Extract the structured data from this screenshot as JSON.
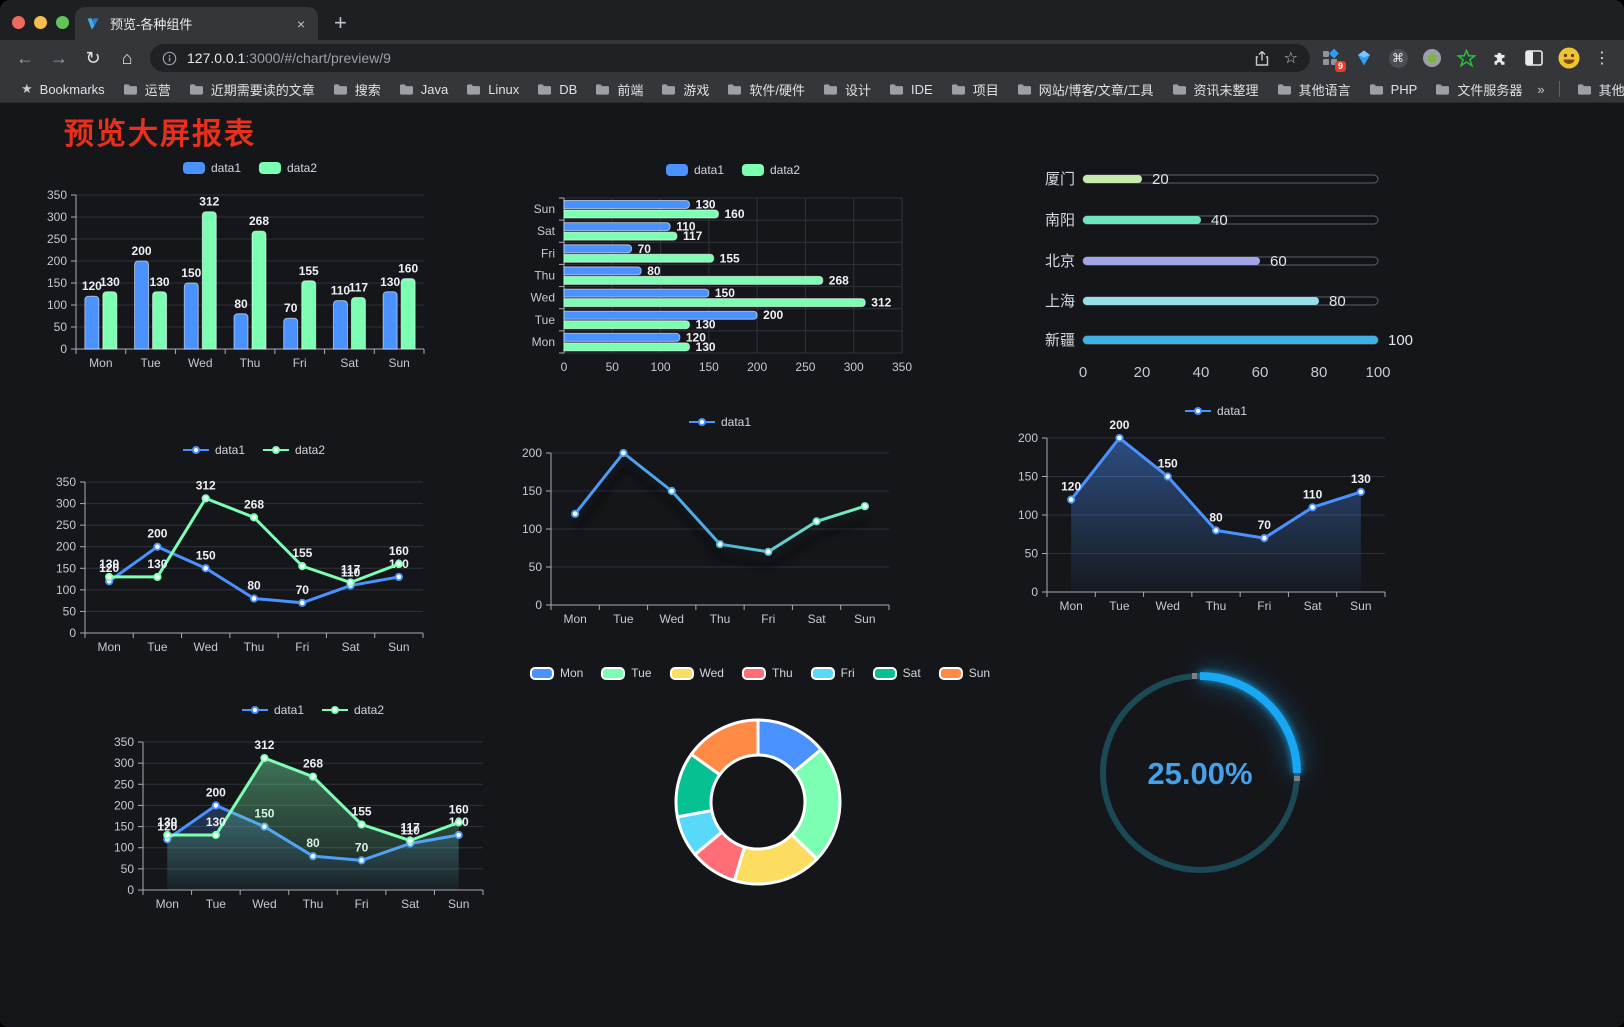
{
  "browser": {
    "tab": {
      "title": "预览-各种组件",
      "close_glyph": "×",
      "new_tab_glyph": "+"
    },
    "address": {
      "host": "127.0.0.1",
      "path": ":3000/#/chart/preview/9"
    },
    "extension_badge": "9",
    "icons": {
      "back": "←",
      "forward": "→",
      "reload": "↻",
      "home": "⌂",
      "bookmark_star": "☆",
      "command": "⌘",
      "menu": "⋮",
      "bookmarks_star": "★",
      "overflow": "»"
    },
    "bookmarks_bar": {
      "label": "Bookmarks",
      "folders": [
        "运营",
        "近期需要读的文章",
        "搜索",
        "Java",
        "Linux",
        "DB",
        "前端",
        "游戏",
        "软件/硬件",
        "设计",
        "IDE",
        "项目",
        "网站/博客/文章/工具",
        "资讯未整理",
        "其他语言",
        "PHP",
        "文件服务器"
      ],
      "other_bookmarks": "其他书签"
    }
  },
  "page": {
    "title": "预览大屏报表",
    "title_color": "#e8301c",
    "background": "#15161a"
  },
  "chart_data": [
    {
      "id": "bar-grouped",
      "type": "bar",
      "orientation": "vertical",
      "categories": [
        "Mon",
        "Tue",
        "Wed",
        "Thu",
        "Fri",
        "Sat",
        "Sun"
      ],
      "series": [
        {
          "name": "data1",
          "color": "#4992ff",
          "values": [
            120,
            200,
            150,
            80,
            70,
            110,
            130
          ]
        },
        {
          "name": "data2",
          "color": "#7cffb2",
          "values": [
            130,
            130,
            312,
            268,
            155,
            117,
            160
          ]
        }
      ],
      "ylim": [
        0,
        350
      ],
      "yticks": [
        0,
        50,
        100,
        150,
        200,
        250,
        300,
        350
      ],
      "legend": [
        "data1",
        "data2"
      ],
      "value_labels": true,
      "grid": true
    },
    {
      "id": "bar-horizontal",
      "type": "bar",
      "orientation": "horizontal",
      "categories_top_to_bottom": [
        "Sun",
        "Sat",
        "Fri",
        "Thu",
        "Wed",
        "Tue",
        "Mon"
      ],
      "series": [
        {
          "name": "data1",
          "color": "#4992ff",
          "values_top_to_bottom": [
            130,
            110,
            70,
            80,
            150,
            200,
            120
          ]
        },
        {
          "name": "data2",
          "color": "#7cffb2",
          "values_top_to_bottom": [
            160,
            117,
            155,
            268,
            312,
            130,
            130
          ]
        }
      ],
      "xlim": [
        0,
        350
      ],
      "xticks": [
        0,
        50,
        100,
        150,
        200,
        250,
        300,
        350
      ],
      "legend": [
        "data1",
        "data2"
      ],
      "value_labels": true,
      "grid": true
    },
    {
      "id": "progress-bars",
      "type": "bar",
      "style": "progress",
      "items": [
        {
          "label": "厦门",
          "value": 20,
          "color": "#c4ebad"
        },
        {
          "label": "南阳",
          "value": 40,
          "color": "#6be6c1"
        },
        {
          "label": "北京",
          "value": 60,
          "color": "#a0a7e6"
        },
        {
          "label": "上海",
          "value": 80,
          "color": "#96dee8"
        },
        {
          "label": "新疆",
          "value": 100,
          "color": "#3fb1e3"
        }
      ],
      "xlim": [
        0,
        100
      ],
      "xticks": [
        0,
        20,
        40,
        60,
        80,
        100
      ],
      "value_labels": true
    },
    {
      "id": "line-two-series",
      "type": "line",
      "categories": [
        "Mon",
        "Tue",
        "Wed",
        "Thu",
        "Fri",
        "Sat",
        "Sun"
      ],
      "series": [
        {
          "name": "data1",
          "color": "#4992ff",
          "values": [
            120,
            200,
            150,
            80,
            70,
            110,
            130
          ]
        },
        {
          "name": "data2",
          "color": "#7cffb2",
          "values": [
            130,
            130,
            312,
            268,
            155,
            117,
            160
          ]
        }
      ],
      "ylim": [
        0,
        350
      ],
      "yticks": [
        0,
        50,
        100,
        150,
        200,
        250,
        300,
        350
      ],
      "legend": [
        "data1",
        "data2"
      ],
      "value_labels": true,
      "grid": true
    },
    {
      "id": "line-gradient",
      "type": "line",
      "categories": [
        "Mon",
        "Tue",
        "Wed",
        "Thu",
        "Fri",
        "Sat",
        "Sun"
      ],
      "series": [
        {
          "name": "data1",
          "color": "#4992ff",
          "gradient": [
            "#4992ff",
            "#52b0e0",
            "#7cffb2"
          ],
          "values": [
            120,
            200,
            150,
            80,
            70,
            110,
            130
          ],
          "shadow": true
        }
      ],
      "ylim": [
        0,
        200
      ],
      "yticks": [
        0,
        50,
        100,
        150,
        200
      ],
      "legend": [
        "data1"
      ],
      "value_labels": false,
      "grid": true
    },
    {
      "id": "line-area",
      "type": "area",
      "categories": [
        "Mon",
        "Tue",
        "Wed",
        "Thu",
        "Fri",
        "Sat",
        "Sun"
      ],
      "series": [
        {
          "name": "data1",
          "color": "#4992ff",
          "area": true,
          "values": [
            120,
            200,
            150,
            80,
            70,
            110,
            130
          ]
        }
      ],
      "ylim": [
        0,
        200
      ],
      "yticks": [
        0,
        50,
        100,
        150,
        200
      ],
      "legend": [
        "data1"
      ],
      "value_labels": true,
      "grid": true
    },
    {
      "id": "line-two-area",
      "type": "area",
      "categories": [
        "Mon",
        "Tue",
        "Wed",
        "Thu",
        "Fri",
        "Sat",
        "Sun"
      ],
      "series": [
        {
          "name": "data1",
          "color": "#4992ff",
          "area": true,
          "values": [
            120,
            200,
            150,
            80,
            70,
            110,
            130
          ]
        },
        {
          "name": "data2",
          "color": "#7cffb2",
          "area": true,
          "values": [
            130,
            130,
            312,
            268,
            155,
            117,
            160
          ]
        }
      ],
      "ylim": [
        0,
        350
      ],
      "yticks": [
        0,
        50,
        100,
        150,
        200,
        250,
        300,
        350
      ],
      "legend": [
        "data1",
        "data2"
      ],
      "value_labels": true,
      "grid": true
    },
    {
      "id": "donut",
      "type": "pie",
      "inner_radius": true,
      "border_color": "#ffffff",
      "items": [
        {
          "label": "Mon",
          "value": 120,
          "color": "#4992ff"
        },
        {
          "label": "Tue",
          "value": 200,
          "color": "#7cffb2"
        },
        {
          "label": "Wed",
          "value": 150,
          "color": "#fddd60"
        },
        {
          "label": "Thu",
          "value": 80,
          "color": "#ff6e76"
        },
        {
          "label": "Fri",
          "value": 70,
          "color": "#58d9f9"
        },
        {
          "label": "Sat",
          "value": 110,
          "color": "#05c091"
        },
        {
          "label": "Sun",
          "value": 130,
          "color": "#ff8a45"
        }
      ],
      "legend": [
        "Mon",
        "Tue",
        "Wed",
        "Thu",
        "Fri",
        "Sat",
        "Sun"
      ]
    },
    {
      "id": "gauge",
      "type": "gauge",
      "value": 25,
      "display": "25.00%",
      "color": "#17a7f3",
      "track_color": "#1c4956",
      "text_color": "#45a1ea"
    }
  ]
}
